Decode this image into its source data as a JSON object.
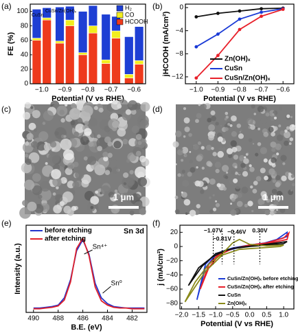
{
  "chart_data": [
    {
      "type": "bar",
      "panel": "(a)",
      "xlabel": "Potential (V vs RHE)",
      "ylabel": "FE (%)",
      "categories": [
        "−1.0",
        "−0.9",
        "−0.8",
        "−0.7",
        "−0.6"
      ],
      "groups": [
        "CuSn",
        "CuSn/Zn(OH)ₓ"
      ],
      "ylim": [
        0,
        110
      ],
      "yticks": [
        0,
        20,
        40,
        60,
        80,
        100
      ],
      "legend": "upper-right",
      "series": [
        {
          "name": "H₂",
          "color": "#1e3fd4",
          "values": [
            [
              40,
              47,
              57,
              63,
              52
            ],
            [
              14,
              19,
              28,
              20,
              47
            ]
          ]
        },
        {
          "name": "CO",
          "color": "#f2ee1e",
          "values": [
            [
              3,
              3,
              3,
              5,
              5
            ],
            [
              3,
              8,
              10,
              10,
              5
            ]
          ]
        },
        {
          "name": "HCOOH",
          "color": "#ee3a1c",
          "values": [
            [
              60,
              56,
              40,
              28,
              8
            ],
            [
              88,
              80,
              70,
              63,
              27
            ]
          ]
        }
      ]
    },
    {
      "type": "line",
      "panel": "(b)",
      "xlabel": "Potential (V vs RHE)",
      "ylabel": "jHCOOH (mA/cm²)",
      "x": [
        -1.0,
        -0.9,
        -0.8,
        -0.7,
        -0.6
      ],
      "xlim": [
        -1.05,
        -0.55
      ],
      "xticks": [
        {
          "value": -1.0,
          "label": "−1.0"
        },
        {
          "value": -0.9,
          "label": "−0.9"
        },
        {
          "value": -0.8,
          "label": "−0.8"
        },
        {
          "value": -0.7,
          "label": "−0.7"
        },
        {
          "value": -0.6,
          "label": "−0.6"
        }
      ],
      "ylim": [
        -13.2,
        0.6
      ],
      "yticks": [
        0,
        {
          "value": -4,
          "label": "−4"
        },
        {
          "value": -8,
          "label": "−8"
        },
        {
          "value": -12,
          "label": "−12"
        }
      ],
      "legend": "lower-right",
      "markers": true,
      "series": [
        {
          "name": "Zn(OH)ₓ",
          "color": "#111111",
          "values": [
            -1.6,
            -1.0,
            -0.6,
            -0.2,
            -0.1
          ]
        },
        {
          "name": "CuSn",
          "color": "#1a3ad6",
          "values": [
            -6.8,
            -4.6,
            -2.0,
            -0.8,
            -0.2
          ]
        },
        {
          "name": "CuSn/Zn(OH)ₓ",
          "color": "#e8202a",
          "values": [
            -12.2,
            -8.3,
            -3.8,
            -1.5,
            -0.3
          ]
        }
      ]
    },
    {
      "type": "image",
      "panel": "(c)",
      "scale_bar": "1 μm"
    },
    {
      "type": "image",
      "panel": "(d)",
      "scale_bar": "1 μm"
    },
    {
      "type": "line",
      "panel": "(e)",
      "title": "Sn 3d",
      "xlabel": "B.E. (eV)",
      "ylabel": "Intensity (a.u.)",
      "x": [
        490,
        489.5,
        489,
        488.5,
        488,
        487.5,
        487,
        486.5,
        486,
        485.5,
        485,
        484.5,
        484,
        483.5,
        483,
        482.5,
        482,
        481.5,
        481
      ],
      "xlim": [
        490.6,
        480.8
      ],
      "xticks": [
        490,
        488,
        486,
        484,
        482
      ],
      "ylim": [
        0,
        1.2
      ],
      "legend": "upper-left",
      "annotations": [
        {
          "label": "Sn⁴⁺",
          "x": 486
        },
        {
          "label": "Sn⁰",
          "x": 484.5
        }
      ],
      "series": [
        {
          "name": "before etching",
          "color": "#2233cc",
          "values": [
            0.06,
            0.06,
            0.07,
            0.08,
            0.1,
            0.2,
            0.45,
            0.85,
            1.0,
            0.8,
            0.4,
            0.2,
            0.12,
            0.08,
            0.07,
            0.06,
            0.06,
            0.06,
            0.06
          ]
        },
        {
          "name": "after etching",
          "color": "#e0202a",
          "values": [
            0.05,
            0.05,
            0.06,
            0.07,
            0.09,
            0.17,
            0.42,
            0.88,
            1.02,
            0.78,
            0.35,
            0.16,
            0.1,
            0.07,
            0.06,
            0.06,
            0.05,
            0.05,
            0.05
          ]
        }
      ]
    },
    {
      "type": "line",
      "panel": "(f)",
      "xlabel": "Potential (V vs RHE)",
      "ylabel": "j (mA/cm²)",
      "xlim": [
        -2.05,
        1.3
      ],
      "xticks": [
        {
          "value": -2.0,
          "label": "−2.0"
        },
        {
          "value": -1.5,
          "label": "−1.5"
        },
        {
          "value": -1.0,
          "label": "−1.0"
        },
        {
          "value": -0.5,
          "label": "−0.5"
        },
        {
          "value": 0.0,
          "label": "0.0"
        },
        {
          "value": 0.5,
          "label": "0.5"
        },
        {
          "value": 1.0,
          "label": "1.0"
        }
      ],
      "ylim": [
        -88,
        30
      ],
      "yticks": [
        {
          "value": -80,
          "label": "−80"
        },
        {
          "value": -60,
          "label": "−60"
        },
        {
          "value": -40,
          "label": "−40"
        },
        {
          "value": -20,
          "label": "−20"
        },
        0,
        20
      ],
      "legend": "lower-right",
      "annotations": [
        {
          "label": "−1.07V",
          "x": -1.07
        },
        {
          "label": "−0.81V",
          "x": -0.81
        },
        {
          "label": "−0.46V",
          "x": -0.46
        },
        {
          "label": "0.30V",
          "x": 0.3
        }
      ],
      "series": [
        {
          "name": "CuSn/Zn(OH)ₓ before etching",
          "color": "#1a3ad6",
          "x": [
            -1.55,
            -1.3,
            -1.0,
            -0.6,
            -0.2,
            0.3,
            0.8,
            1.1,
            1.1,
            0.6,
            0.0,
            -0.5,
            -1.0,
            -1.3,
            -1.55
          ],
          "values": [
            -75,
            -30,
            -12,
            -5,
            0,
            3,
            10,
            20,
            14,
            6,
            2,
            -2,
            -10,
            -25,
            -75
          ]
        },
        {
          "name": "CuSn/Zn(OH)ₓ after etching",
          "color": "#e8202a",
          "x": [
            -1.45,
            -1.2,
            -0.9,
            -0.5,
            0,
            0.5,
            1.0,
            1.15,
            1.1,
            0.5,
            0,
            -0.5,
            -0.9,
            -1.2,
            -1.45
          ],
          "values": [
            -60,
            -25,
            -10,
            -3,
            2,
            5,
            12,
            19,
            10,
            4,
            1,
            -3,
            -12,
            -30,
            -60
          ]
        },
        {
          "name": "CuSn",
          "color": "#111111",
          "x": [
            -1.8,
            -1.5,
            -1.1,
            -0.7,
            -0.3,
            0.3,
            0.8,
            1.1,
            1.0,
            0.5,
            0,
            -0.5,
            -1.0,
            -1.4,
            -1.8
          ],
          "values": [
            -55,
            -30,
            -15,
            -5,
            -1,
            2,
            5,
            7,
            4,
            2,
            0,
            -3,
            -10,
            -28,
            -55
          ]
        },
        {
          "name": "Zn(OH)ₓ",
          "color": "#8a8a1a",
          "x": [
            -1.9,
            -1.6,
            -1.2,
            -0.8,
            -0.5,
            -0.3,
            0.0,
            0.5,
            1.0,
            0.9,
            0.3,
            -0.3,
            -0.8,
            -1.3,
            -1.9
          ],
          "values": [
            -78,
            -50,
            -25,
            -10,
            5,
            10,
            3,
            1,
            2,
            0,
            -2,
            -4,
            -12,
            -35,
            -78
          ]
        }
      ]
    }
  ]
}
